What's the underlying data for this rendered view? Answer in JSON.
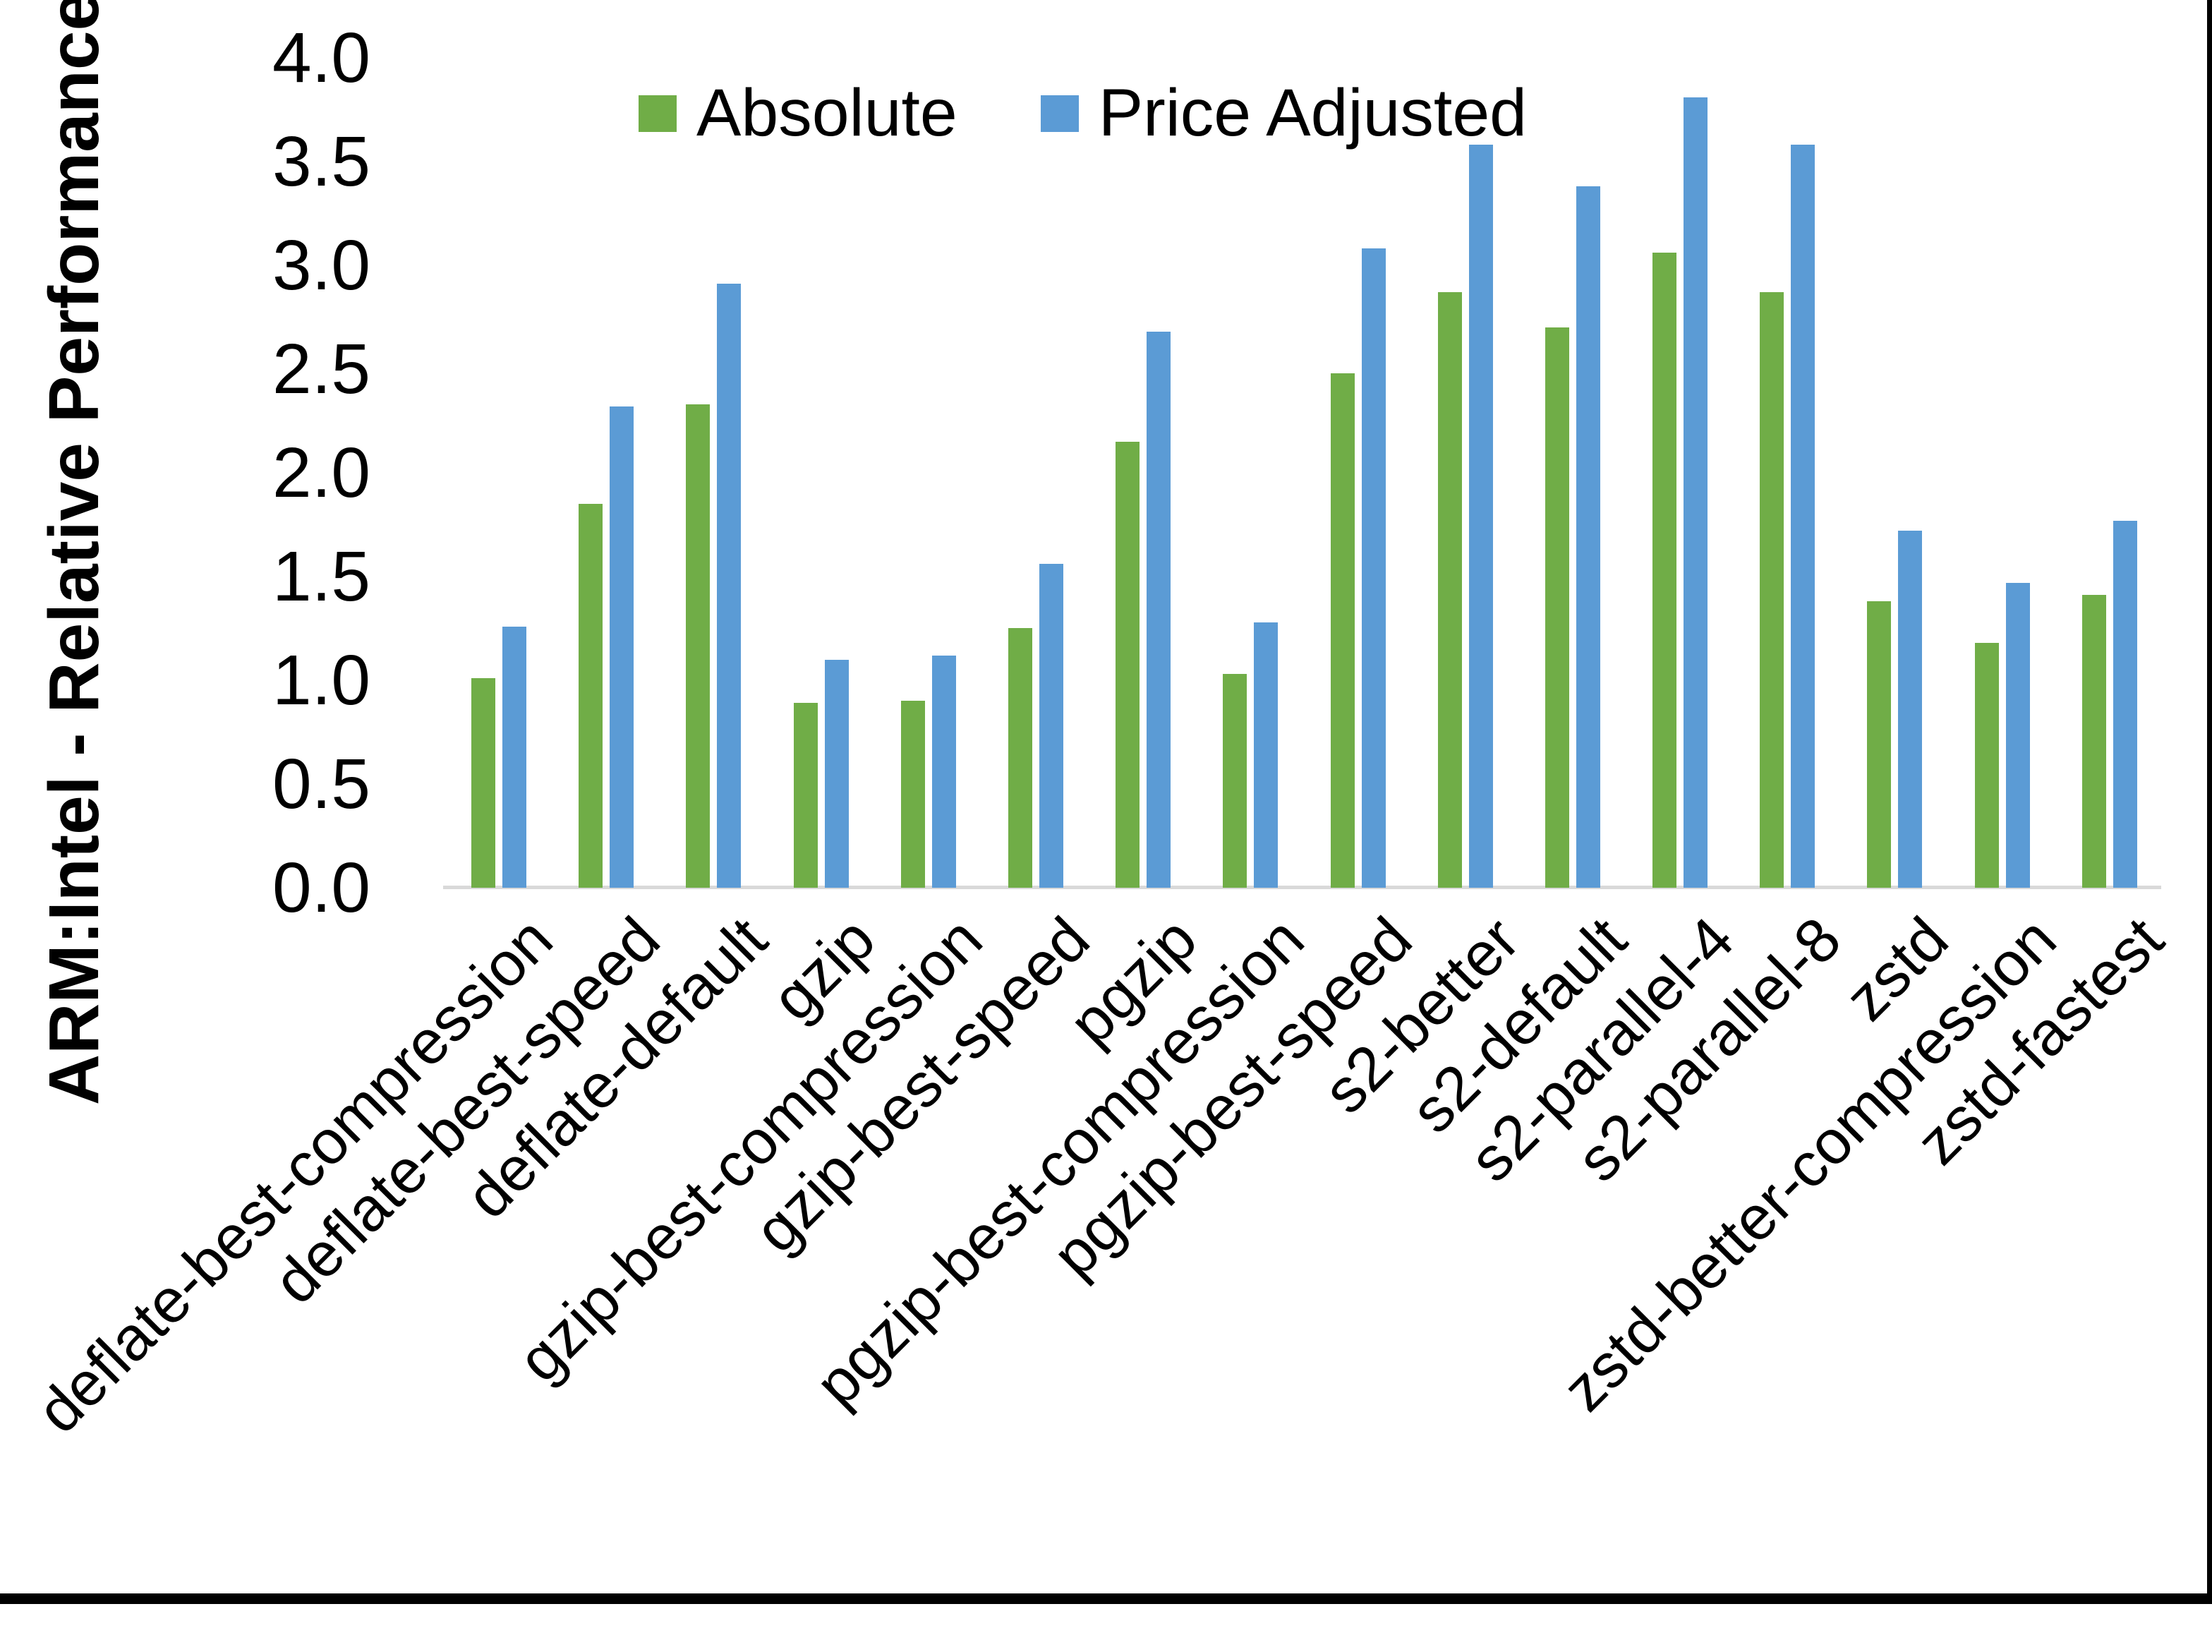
{
  "chart_data": {
    "type": "bar",
    "title": "",
    "xlabel": "",
    "ylabel": "ARM:Intel - Relative Performance",
    "ylim": [
      0.0,
      4.0
    ],
    "ytick_step": 0.5,
    "yticks": [
      "0.0",
      "0.5",
      "1.0",
      "1.5",
      "2.0",
      "2.5",
      "3.0",
      "3.5",
      "4.0"
    ],
    "grid": false,
    "legend_position": "top-center",
    "categories": [
      "deflate-best-compression",
      "deflate-best-speed",
      "deflate-default",
      "gzip",
      "gzip-best-compression",
      "gzip-best-speed",
      "pgzip",
      "pgzip-best-compression",
      "pgzip-best-speed",
      "s2-better",
      "s2-default",
      "s2-parallel-4",
      "s2-parallel-8",
      "zstd",
      "zstd-better-compression",
      "zstd-fastest"
    ],
    "series": [
      {
        "name": "Absolute",
        "color": "#70AD47",
        "values": [
          1.01,
          1.85,
          2.33,
          0.89,
          0.9,
          1.25,
          2.15,
          1.03,
          2.48,
          2.87,
          2.7,
          3.06,
          2.87,
          1.38,
          1.18,
          1.41
        ]
      },
      {
        "name": "Price Adjusted",
        "color": "#5B9BD5",
        "values": [
          1.26,
          2.32,
          2.91,
          1.1,
          1.12,
          1.56,
          2.68,
          1.28,
          3.08,
          3.58,
          3.38,
          3.81,
          3.58,
          1.72,
          1.47,
          1.77
        ]
      }
    ]
  },
  "colors": {
    "background": "#FFFFFF",
    "axis_line": "#D9D9D9",
    "text": "#000000",
    "frame": "#000000"
  }
}
